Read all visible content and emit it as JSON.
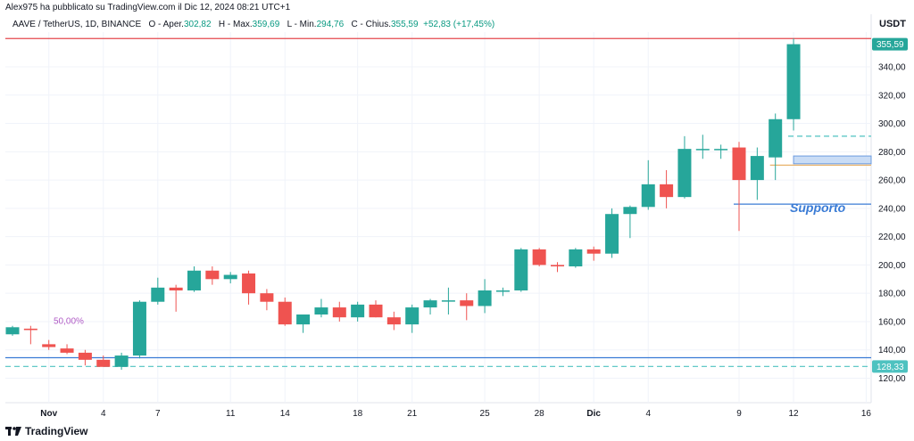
{
  "header": {
    "published_note": "Alex975 ha pubblicato su TradingView.com il Dic 12, 2024 08:21 UTC+1",
    "symbol": "AAVE / TetherUS, 1D, BINANCE",
    "open_label": "O - Aper.",
    "open_value": "302,82",
    "high_label": "H - Max.",
    "high_value": "359,69",
    "low_label": "L - Min.",
    "low_value": "294,76",
    "close_label": "C - Chius.",
    "close_value": "355,59",
    "change": "+52,83 (+17,45%)"
  },
  "axis": {
    "currency": "USDT"
  },
  "footer": {
    "brand": "TradingView",
    "logo_icon": "tradingview-logo-icon"
  },
  "chart_data": {
    "type": "candlestick",
    "y_ticks": [
      120,
      140,
      160,
      180,
      200,
      220,
      240,
      260,
      280,
      300,
      320,
      340
    ],
    "y_tick_labels": [
      "120,00",
      "140,00",
      "160,00",
      "180,00",
      "200,00",
      "220,00",
      "240,00",
      "260,00",
      "280,00",
      "300,00",
      "320,00",
      "340,00"
    ],
    "ylim": [
      114,
      363
    ],
    "x_ticks": [
      {
        "label": "Nov",
        "index": 2
      },
      {
        "label": "4",
        "index": 5
      },
      {
        "label": "7",
        "index": 8
      },
      {
        "label": "11",
        "index": 12
      },
      {
        "label": "14",
        "index": 15
      },
      {
        "label": "18",
        "index": 19
      },
      {
        "label": "21",
        "index": 22
      },
      {
        "label": "25",
        "index": 26
      },
      {
        "label": "28",
        "index": 29
      },
      {
        "label": "Dic",
        "index": 32
      },
      {
        "label": "4",
        "index": 35
      },
      {
        "label": "9",
        "index": 40
      },
      {
        "label": "12",
        "index": 43
      },
      {
        "label": "16",
        "index": 47
      }
    ],
    "candles": [
      {
        "o": 151,
        "h": 157,
        "l": 150,
        "c": 156
      },
      {
        "o": 155,
        "h": 157,
        "l": 144,
        "c": 154
      },
      {
        "o": 144,
        "h": 147,
        "l": 140,
        "c": 142
      },
      {
        "o": 141,
        "h": 144,
        "l": 137,
        "c": 138
      },
      {
        "o": 138,
        "h": 140,
        "l": 129,
        "c": 133
      },
      {
        "o": 133,
        "h": 136,
        "l": 128,
        "c": 128
      },
      {
        "o": 128,
        "h": 138,
        "l": 126,
        "c": 136
      },
      {
        "o": 136,
        "h": 175,
        "l": 134,
        "c": 174
      },
      {
        "o": 174,
        "h": 191,
        "l": 172,
        "c": 184
      },
      {
        "o": 184,
        "h": 186,
        "l": 167,
        "c": 182
      },
      {
        "o": 182,
        "h": 199,
        "l": 181,
        "c": 196
      },
      {
        "o": 196,
        "h": 199,
        "l": 186,
        "c": 190
      },
      {
        "o": 190,
        "h": 195,
        "l": 187,
        "c": 193
      },
      {
        "o": 194,
        "h": 196,
        "l": 172,
        "c": 180
      },
      {
        "o": 180,
        "h": 183,
        "l": 168,
        "c": 174
      },
      {
        "o": 174,
        "h": 177,
        "l": 157,
        "c": 158
      },
      {
        "o": 158,
        "h": 165,
        "l": 152,
        "c": 165
      },
      {
        "o": 165,
        "h": 176,
        "l": 163,
        "c": 170
      },
      {
        "o": 170,
        "h": 174,
        "l": 160,
        "c": 163
      },
      {
        "o": 163,
        "h": 174,
        "l": 160,
        "c": 172
      },
      {
        "o": 172,
        "h": 175,
        "l": 163,
        "c": 163
      },
      {
        "o": 163,
        "h": 167,
        "l": 154,
        "c": 158
      },
      {
        "o": 158,
        "h": 172,
        "l": 152,
        "c": 170
      },
      {
        "o": 170,
        "h": 176,
        "l": 165,
        "c": 175
      },
      {
        "o": 175,
        "h": 184,
        "l": 165,
        "c": 175
      },
      {
        "o": 175,
        "h": 180,
        "l": 161,
        "c": 171
      },
      {
        "o": 171,
        "h": 190,
        "l": 166,
        "c": 182
      },
      {
        "o": 182,
        "h": 184,
        "l": 178,
        "c": 182
      },
      {
        "o": 182,
        "h": 212,
        "l": 181,
        "c": 211
      },
      {
        "o": 211,
        "h": 212,
        "l": 199,
        "c": 200
      },
      {
        "o": 200,
        "h": 202,
        "l": 195,
        "c": 199
      },
      {
        "o": 199,
        "h": 212,
        "l": 198,
        "c": 211
      },
      {
        "o": 211,
        "h": 213,
        "l": 203,
        "c": 208
      },
      {
        "o": 208,
        "h": 240,
        "l": 205,
        "c": 236
      },
      {
        "o": 236,
        "h": 242,
        "l": 219,
        "c": 241
      },
      {
        "o": 241,
        "h": 274,
        "l": 239,
        "c": 257
      },
      {
        "o": 257,
        "h": 267,
        "l": 240,
        "c": 248
      },
      {
        "o": 248,
        "h": 291,
        "l": 247,
        "c": 282
      },
      {
        "o": 282,
        "h": 292,
        "l": 275,
        "c": 282
      },
      {
        "o": 282,
        "h": 285,
        "l": 275,
        "c": 282
      },
      {
        "o": 283,
        "h": 287,
        "l": 224,
        "c": 260
      },
      {
        "o": 260,
        "h": 283,
        "l": 246,
        "c": 277
      },
      {
        "o": 276,
        "h": 307,
        "l": 260,
        "c": 303
      },
      {
        "o": 303,
        "h": 360,
        "l": 295,
        "c": 356
      }
    ],
    "price_labels": {
      "last": "355,59",
      "support_low": "128,33"
    },
    "annotations": {
      "fib_label": "50,00%",
      "support_text": "Supporto",
      "horizontal_levels": [
        {
          "value": 360,
          "color": "#e5484d",
          "style": "solid",
          "start_index": 0
        },
        {
          "value": 291,
          "color": "#4ec2c0",
          "style": "dashed",
          "start_index": 43
        },
        {
          "value": 270.5,
          "color": "#e8b26a",
          "style": "solid",
          "start_index": 42
        },
        {
          "value": 243,
          "color": "#3a7bd5",
          "style": "solid",
          "start_index": 40
        },
        {
          "value": 134.5,
          "color": "#3a7bd5",
          "style": "solid",
          "start_index": 0
        },
        {
          "value": 128.3,
          "color": "#4ec2c0",
          "style": "dashed",
          "start_index": 0
        }
      ],
      "zone": {
        "low": 271.5,
        "high": 277,
        "start_index": 43
      },
      "colors": {
        "up": "#26a69a",
        "down": "#ef5350"
      }
    }
  }
}
